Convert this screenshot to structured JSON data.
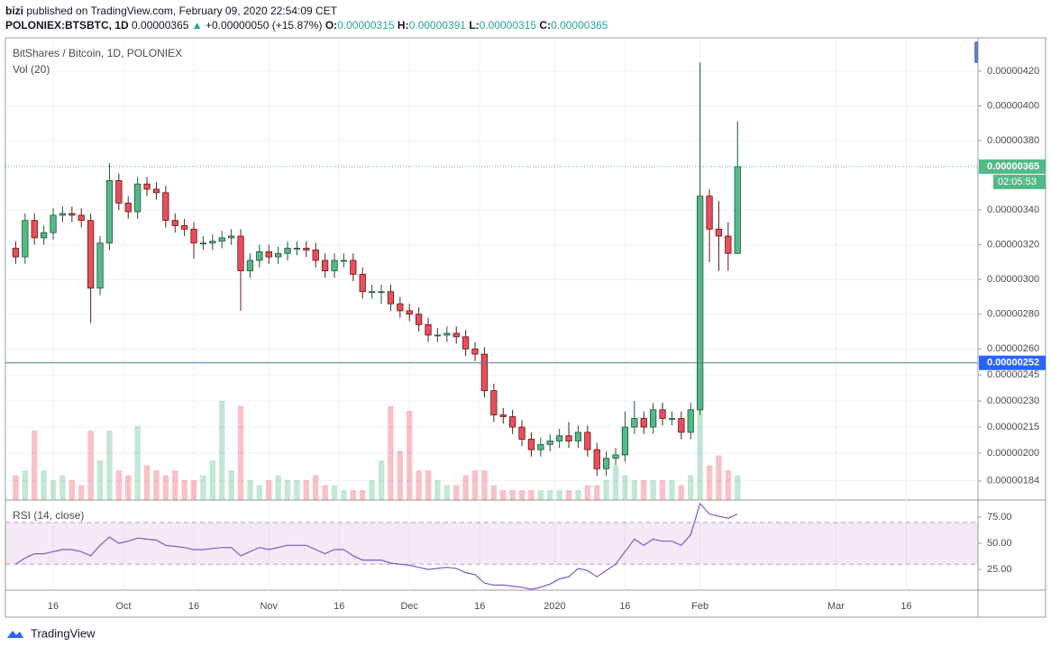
{
  "header": {
    "publisher_name": "bizi",
    "published": "published on TradingView.com, February 09, 2020 22:54:09 CET",
    "symbol": "POLONIEX:BTSBTC, 1D",
    "last": "0.00000365",
    "change": "+0.00000050 (+15.87%)",
    "ohlc": [
      {
        "label": "O:",
        "value": "0.00000315"
      },
      {
        "label": "H:",
        "value": "0.00000391"
      },
      {
        "label": "L:",
        "value": "0.00000315"
      },
      {
        "label": "C:",
        "value": "0.00000365"
      }
    ]
  },
  "footer": {
    "brand": "TradingView"
  },
  "chart_data": {
    "type": "candlestick",
    "title": "BitShares / Bitcoin, 1D, POLONIEX",
    "volume_label": "Vol (20)",
    "rsi_label": "RSI (14, close)",
    "x": [
      -23,
      -21,
      -19,
      -17,
      -15,
      -13,
      -11,
      -9,
      -7,
      -5,
      -3,
      -1,
      1,
      3,
      5,
      7,
      9,
      11,
      13,
      15,
      17,
      19,
      21,
      23,
      25,
      27,
      29,
      31,
      33,
      35,
      37,
      39,
      41,
      43,
      45,
      47,
      49,
      51,
      53,
      55,
      57,
      59,
      61,
      63,
      65,
      67,
      69,
      71,
      73,
      75,
      77,
      79,
      81,
      83,
      85,
      87,
      89,
      91,
      93,
      95,
      97,
      99,
      101,
      103,
      105,
      107,
      109,
      111,
      113,
      115,
      117,
      119,
      121,
      123,
      125,
      127,
      129,
      131
    ],
    "xlim": [
      -25.2,
      182.3
    ],
    "xticks": [
      {
        "value": -15,
        "label": "16"
      },
      {
        "value": 0,
        "label": "Oct"
      },
      {
        "value": 15,
        "label": "16"
      },
      {
        "value": 31,
        "label": "Nov"
      },
      {
        "value": 46,
        "label": "16"
      },
      {
        "value": 61,
        "label": "Dec"
      },
      {
        "value": 76,
        "label": "16"
      },
      {
        "value": 92,
        "label": "2020"
      },
      {
        "value": 107,
        "label": "16"
      },
      {
        "value": 123,
        "label": "Feb"
      },
      {
        "value": 152,
        "label": "Mar"
      },
      {
        "value": 167,
        "label": "16"
      }
    ],
    "ylim": [
      1.73e-06,
      4.376e-06
    ],
    "yticks": [
      {
        "value": 1.84e-06,
        "label": "0.00000184"
      },
      {
        "value": 2e-06,
        "label": "0.00000200"
      },
      {
        "value": 2.15e-06,
        "label": "0.00000215"
      },
      {
        "value": 2.3e-06,
        "label": "0.00000230"
      },
      {
        "value": 2.45e-06,
        "label": "0.00000245"
      },
      {
        "value": 2.6e-06,
        "label": "0.00000260"
      },
      {
        "value": 2.8e-06,
        "label": "0.00000280"
      },
      {
        "value": 3e-06,
        "label": "0.00000300"
      },
      {
        "value": 3.2e-06,
        "label": "0.00000320"
      },
      {
        "value": 3.4e-06,
        "label": "0.00000340"
      },
      {
        "value": 3.8e-06,
        "label": "0.00000380"
      },
      {
        "value": 4e-06,
        "label": "0.00000400"
      },
      {
        "value": 4.2e-06,
        "label": "0.00000420"
      }
    ],
    "grid": true,
    "up_color": "#53b987",
    "down_color": "#eb4d5c",
    "candles": {
      "open": [
        3.18e-06,
        3.13e-06,
        3.34e-06,
        3.24e-06,
        3.27e-06,
        3.37e-06,
        3.38e-06,
        3.37e-06,
        3.34e-06,
        2.95e-06,
        3.21e-06,
        3.57e-06,
        3.44e-06,
        3.39e-06,
        3.55e-06,
        3.52e-06,
        3.5e-06,
        3.34e-06,
        3.31e-06,
        3.29e-06,
        3.21e-06,
        3.21e-06,
        3.22e-06,
        3.24e-06,
        3.25e-06,
        3.05e-06,
        3.11e-06,
        3.16e-06,
        3.13e-06,
        3.15e-06,
        3.18e-06,
        3.18e-06,
        3.17e-06,
        3.11e-06,
        3.05e-06,
        3.11e-06,
        3.11e-06,
        3.03e-06,
        2.93e-06,
        2.93e-06,
        2.93e-06,
        2.86e-06,
        2.82e-06,
        2.8e-06,
        2.74e-06,
        2.68e-06,
        2.68e-06,
        2.69e-06,
        2.67e-06,
        2.6e-06,
        2.57e-06,
        2.36e-06,
        2.22e-06,
        2.21e-06,
        2.15e-06,
        2.08e-06,
        2.02e-06,
        2.05e-06,
        2.07e-06,
        2.1e-06,
        2.07e-06,
        2.12e-06,
        2.02e-06,
        1.91e-06,
        1.97e-06,
        1.99e-06,
        2.15e-06,
        2.2e-06,
        2.15e-06,
        2.25e-06,
        2.2e-06,
        2.2e-06,
        2.12e-06,
        2.25e-06,
        3.48e-06,
        3.29e-06,
        3.25e-06,
        3.15e-06
      ],
      "high": [
        3.22e-06,
        3.38e-06,
        3.38e-06,
        3.31e-06,
        3.41e-06,
        3.42e-06,
        3.42e-06,
        3.41e-06,
        3.38e-06,
        3.25e-06,
        3.67e-06,
        3.61e-06,
        3.48e-06,
        3.59e-06,
        3.59e-06,
        3.56e-06,
        3.54e-06,
        3.38e-06,
        3.35e-06,
        3.33e-06,
        3.25e-06,
        3.26e-06,
        3.28e-06,
        3.29e-06,
        3.29e-06,
        3.15e-06,
        3.2e-06,
        3.2e-06,
        3.19e-06,
        3.22e-06,
        3.22e-06,
        3.22e-06,
        3.21e-06,
        3.15e-06,
        3.15e-06,
        3.15e-06,
        3.15e-06,
        3.07e-06,
        2.97e-06,
        2.97e-06,
        2.97e-06,
        2.9e-06,
        2.86e-06,
        2.84e-06,
        2.78e-06,
        2.72e-06,
        2.73e-06,
        2.73e-06,
        2.71e-06,
        2.64e-06,
        2.61e-06,
        2.4e-06,
        2.26e-06,
        2.25e-06,
        2.19e-06,
        2.12e-06,
        2.09e-06,
        2.11e-06,
        2.14e-06,
        2.18e-06,
        2.16e-06,
        2.16e-06,
        2.06e-06,
        2.01e-06,
        2.03e-06,
        2.24e-06,
        2.3e-06,
        2.24e-06,
        2.29e-06,
        2.29e-06,
        2.24e-06,
        2.24e-06,
        2.29e-06,
        4.25e-06,
        3.52e-06,
        3.45e-06,
        3.33e-06,
        3.91e-06
      ],
      "low": [
        3.09e-06,
        3.09e-06,
        3.2e-06,
        3.2e-06,
        3.23e-06,
        3.33e-06,
        3.33e-06,
        3.3e-06,
        2.75e-06,
        2.91e-06,
        3.17e-06,
        3.4e-06,
        3.35e-06,
        3.35e-06,
        3.48e-06,
        3.46e-06,
        3.3e-06,
        3.27e-06,
        3.25e-06,
        3.12e-06,
        3.17e-06,
        3.17e-06,
        3.18e-06,
        3.2e-06,
        2.82e-06,
        3.01e-06,
        3.07e-06,
        3.09e-06,
        3.09e-06,
        3.11e-06,
        3.14e-06,
        3.13e-06,
        3.07e-06,
        3.01e-06,
        3.01e-06,
        3.07e-06,
        2.99e-06,
        2.89e-06,
        2.89e-06,
        2.86e-06,
        2.82e-06,
        2.78e-06,
        2.76e-06,
        2.7e-06,
        2.64e-06,
        2.64e-06,
        2.64e-06,
        2.63e-06,
        2.56e-06,
        2.53e-06,
        2.32e-06,
        2.18e-06,
        2.17e-06,
        2.11e-06,
        2.04e-06,
        1.98e-06,
        1.98e-06,
        2.01e-06,
        2.03e-06,
        2.03e-06,
        2.03e-06,
        1.98e-06,
        1.87e-06,
        1.87e-06,
        1.93e-06,
        1.95e-06,
        2.11e-06,
        2.11e-06,
        2.11e-06,
        2.16e-06,
        2.16e-06,
        2.08e-06,
        2.08e-06,
        2.22e-06,
        3.1e-06,
        3.05e-06,
        3.05e-06,
        3.15e-06
      ],
      "close": [
        3.13e-06,
        3.34e-06,
        3.24e-06,
        3.27e-06,
        3.37e-06,
        3.38e-06,
        3.37e-06,
        3.34e-06,
        2.95e-06,
        3.21e-06,
        3.57e-06,
        3.44e-06,
        3.39e-06,
        3.55e-06,
        3.52e-06,
        3.5e-06,
        3.34e-06,
        3.31e-06,
        3.29e-06,
        3.21e-06,
        3.21e-06,
        3.22e-06,
        3.24e-06,
        3.25e-06,
        3.05e-06,
        3.11e-06,
        3.16e-06,
        3.13e-06,
        3.15e-06,
        3.18e-06,
        3.18e-06,
        3.17e-06,
        3.11e-06,
        3.05e-06,
        3.11e-06,
        3.11e-06,
        3.03e-06,
        2.93e-06,
        2.93e-06,
        2.93e-06,
        2.86e-06,
        2.82e-06,
        2.8e-06,
        2.74e-06,
        2.68e-06,
        2.68e-06,
        2.69e-06,
        2.67e-06,
        2.6e-06,
        2.57e-06,
        2.36e-06,
        2.22e-06,
        2.21e-06,
        2.15e-06,
        2.08e-06,
        2.02e-06,
        2.05e-06,
        2.07e-06,
        2.1e-06,
        2.07e-06,
        2.12e-06,
        2.02e-06,
        1.91e-06,
        1.97e-06,
        1.99e-06,
        2.15e-06,
        2.2e-06,
        2.15e-06,
        2.25e-06,
        2.2e-06,
        2.2e-06,
        2.12e-06,
        2.25e-06,
        3.48e-06,
        3.29e-06,
        3.25e-06,
        3.15e-06,
        3.65e-06
      ]
    },
    "volume": [
      25,
      30,
      70,
      30,
      20,
      25,
      20,
      15,
      70,
      40,
      70,
      30,
      25,
      75,
      35,
      30,
      25,
      30,
      20,
      20,
      25,
      40,
      100,
      30,
      95,
      20,
      15,
      20,
      25,
      20,
      20,
      20,
      25,
      15,
      15,
      10,
      10,
      10,
      20,
      40,
      95,
      50,
      90,
      30,
      30,
      20,
      15,
      15,
      25,
      30,
      30,
      15,
      10,
      10,
      10,
      10,
      10,
      10,
      10,
      10,
      10,
      15,
      15,
      20,
      35,
      25,
      20,
      20,
      20,
      20,
      20,
      15,
      25,
      95,
      35,
      45,
      30,
      25
    ],
    "rsi": [
      30,
      36,
      40,
      40,
      42,
      44,
      44,
      42,
      38,
      48,
      56,
      50,
      52,
      55,
      54,
      53,
      48,
      47,
      46,
      44,
      44,
      45,
      46,
      46,
      38,
      42,
      46,
      44,
      46,
      48,
      48,
      48,
      44,
      40,
      44,
      44,
      38,
      34,
      34,
      34,
      31,
      30,
      29,
      27,
      25,
      26,
      27,
      26,
      22,
      20,
      12,
      10,
      10,
      9,
      8,
      6,
      8,
      11,
      16,
      18,
      26,
      24,
      18,
      24,
      30,
      42,
      54,
      48,
      54,
      52,
      52,
      48,
      58,
      88,
      78,
      76,
      74,
      78
    ],
    "rsi_color": "#7e57c2",
    "rsi_ylim": [
      5.2,
      91.4
    ],
    "rsi_yticks": [
      {
        "value": 25,
        "label": "25.00"
      },
      {
        "value": 50,
        "label": "50.00"
      },
      {
        "value": 75,
        "label": "75.00"
      }
    ],
    "rsi_band": [
      30,
      70
    ],
    "last_price": {
      "value": 3.65e-06,
      "label": "0.00000365"
    },
    "countdown": "02:05:53",
    "hline": {
      "value": 2.52e-06,
      "label": "0.00000252"
    }
  }
}
